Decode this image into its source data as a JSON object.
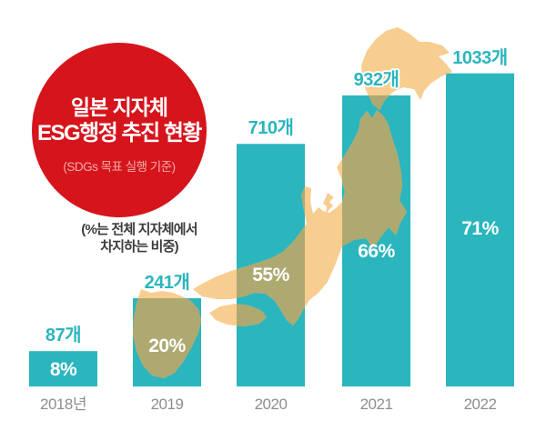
{
  "title_badge": {
    "line1": "일본 지자체",
    "line2": "ESG행정 추진 현황",
    "subtitle": "(SDGs 목표 실행 기준)",
    "bg_color": "#D6141C",
    "text_color": "#FFFFFF",
    "subtitle_color": "#F2ACA8"
  },
  "note": {
    "line1": "(%는 전체 지자체에서",
    "line2": "차지하는 비중)"
  },
  "chart_data": {
    "type": "bar",
    "title": "일본 지자체 ESG행정 추진 현황",
    "subtitle": "(SDGs 목표 실행 기준)",
    "categories": [
      "2018년",
      "2019",
      "2020",
      "2021",
      "2022"
    ],
    "values": [
      87,
      241,
      710,
      932,
      1033
    ],
    "unit": "개",
    "count_labels": [
      "87개",
      "241개",
      "710개",
      "932개",
      "1033개"
    ],
    "percents": [
      8,
      20,
      55,
      66,
      71
    ],
    "percent_labels": [
      "8%",
      "20%",
      "55%",
      "66%",
      "71%"
    ],
    "annotation": "(%는 전체 지자체에서 차지하는 비중)",
    "grid": false,
    "legend": false,
    "bar_color": "#2BB5BD",
    "count_label_color": "#2BB5BD",
    "percent_label_color": "#FFFFFF",
    "year_label_color": "#8E8E8E"
  },
  "map": {
    "name": "japan-map",
    "land_color": "#F8CD90",
    "overlap_color": "#ADA971"
  }
}
